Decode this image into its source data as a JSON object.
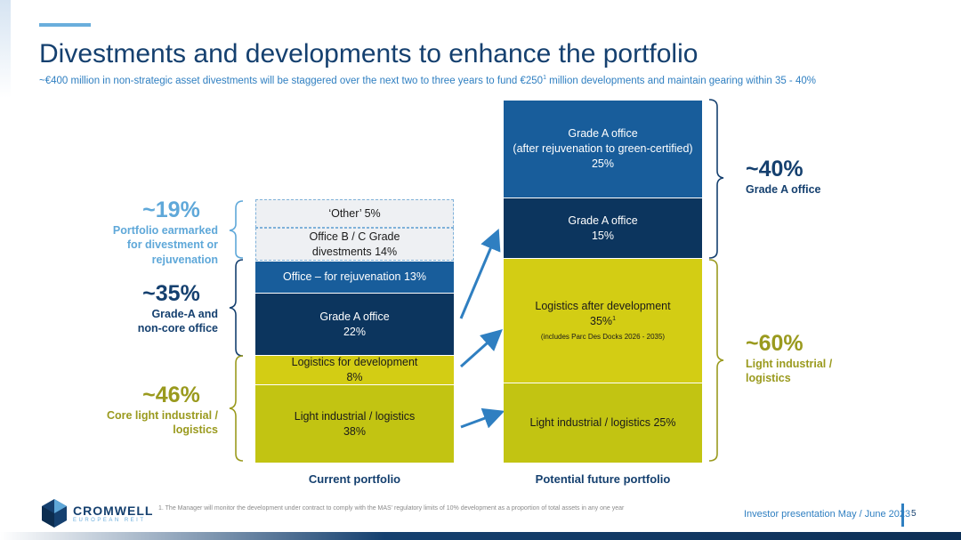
{
  "header": {
    "title": "Divestments and developments to enhance the portfolio",
    "subtitle_before": "~€400 million in non-strategic asset divestments will be staggered over the next two to three years to fund €250",
    "subtitle_sup": "1",
    "subtitle_after": " million developments and maintain gearing within 35 - 40%"
  },
  "colors": {
    "dark_navy": "#0c355e",
    "blue": "#185d9b",
    "olive": "#c2c412",
    "olive_light": "#d3cd14",
    "gray_light": "#eef0f3",
    "pct_light_blue": "#5fa8d9",
    "pct_dark": "#15406f",
    "pct_olive": "#9a9a1e"
  },
  "chart_data": {
    "type": "stacked-bar",
    "categories": [
      "Current portfolio",
      "Potential future portfolio"
    ],
    "series": [
      {
        "column": "Current portfolio",
        "segments": [
          {
            "label": "Light industrial / logistics",
            "value": 38
          },
          {
            "label": "Logistics for development",
            "value": 8
          },
          {
            "label": "Grade A office",
            "value": 22
          },
          {
            "label": "Office – for rejuvenation",
            "value": 13
          },
          {
            "label": "Office B / C Grade divestments",
            "value": 14
          },
          {
            "label": "‘Other’",
            "value": 5
          }
        ]
      },
      {
        "column": "Potential future portfolio",
        "segments": [
          {
            "label": "Light industrial / logistics",
            "value": 25
          },
          {
            "label": "Logistics after development",
            "value": 35
          },
          {
            "label": "Grade A office",
            "value": 15
          },
          {
            "label": "Grade A office (after rejuvenation to green-certified)",
            "value": 25
          }
        ]
      }
    ],
    "groups_left": [
      {
        "pct": "~19%",
        "desc": [
          "Portfolio earmarked",
          "for divestment or",
          "rejuvenation"
        ]
      },
      {
        "pct": "~35%",
        "desc": [
          "Grade-A and",
          "non-core office"
        ]
      },
      {
        "pct": "~46%",
        "desc": [
          "Core light industrial /",
          "logistics"
        ]
      }
    ],
    "groups_right": [
      {
        "pct": "~40%",
        "desc": [
          "Grade A office"
        ]
      },
      {
        "pct": "~60%",
        "desc": [
          "Light industrial /",
          "logistics"
        ]
      }
    ]
  },
  "current": {
    "other": "‘Other’ 5%",
    "bc_line1": "Office B / C Grade",
    "bc_line2": "divestments 14%",
    "rejuv": "Office – for rejuvenation 13%",
    "gradeA_line1": "Grade A office",
    "gradeA_line2": "22%",
    "logdev_line1": "Logistics for development",
    "logdev_line2": "8%",
    "light_line1": "Light industrial / logistics",
    "light_line2": "38%"
  },
  "future": {
    "green_line1": "Grade A office",
    "green_line2": "(after rejuvenation to green-certified)",
    "green_line3": "25%",
    "gradeA_line1": "Grade A office",
    "gradeA_line2": "15%",
    "logafter_line1": "Logistics after development",
    "logafter_line2": "35%",
    "logafter_sup": "1",
    "logafter_note": "(includes Parc Des Docks 2026 - 2035)",
    "light": "Light industrial / logistics 25%"
  },
  "axis": {
    "current": "Current portfolio",
    "future": "Potential future portfolio"
  },
  "footer": {
    "note": "1.   The Manager will monitor the development under contract to comply with the MAS' regulatory limits of 10% development as a proportion of total assets in any one year",
    "presentation": "Investor presentation May / June 2023",
    "page": "5"
  },
  "logo": {
    "name": "CROMWELL",
    "sub": "EUROPEAN REIT"
  }
}
